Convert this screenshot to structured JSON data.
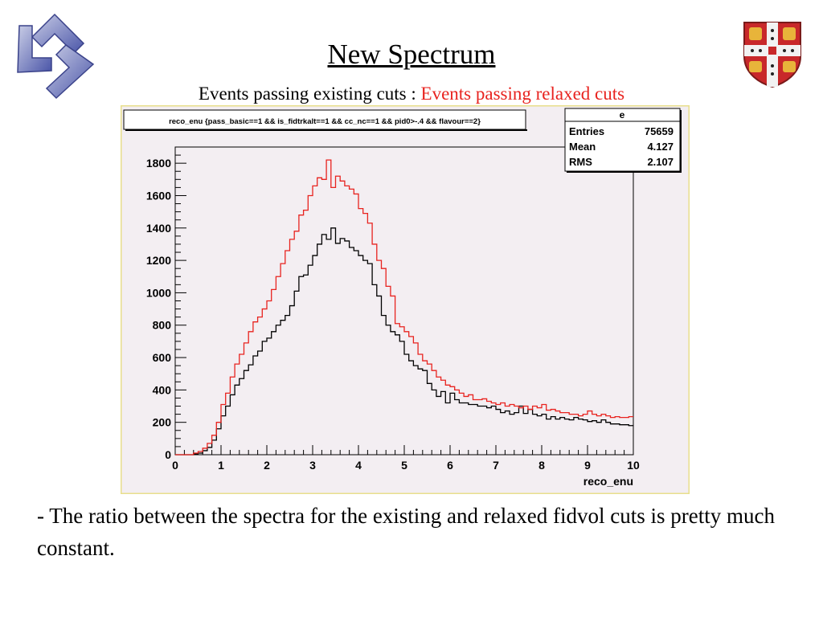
{
  "slide": {
    "title": "New Spectrum",
    "subtitle_black": "Events passing existing cuts : ",
    "subtitle_red": "Events passing relaxed cuts",
    "body_text": "- The ratio between the spectra for the existing and relaxed fidvol cuts is pretty much constant."
  },
  "logos": {
    "left": "triskelion-logo-icon",
    "right": "university-crest-icon"
  },
  "colors": {
    "existing_cuts": "#000000",
    "relaxed_cuts": "#e8231f",
    "canvas_background": "#f3eef2",
    "canvas_border": "#e8df8c"
  },
  "chart_data": {
    "type": "line",
    "style": "step histogram",
    "title": "reco_enu {pass_basic==1 && is_fidtrkalt==1 && cc_nc==1 && pid0>-.4 && flavour==2}",
    "xlabel": "reco_enu",
    "ylabel": "",
    "xlim": [
      0,
      10
    ],
    "ylim": [
      0,
      1900
    ],
    "x_ticks": [
      "0",
      "1",
      "2",
      "3",
      "4",
      "5",
      "6",
      "7",
      "8",
      "9",
      "10"
    ],
    "y_ticks": [
      "0",
      "200",
      "400",
      "600",
      "800",
      "1000",
      "1200",
      "1400",
      "1600",
      "1800"
    ],
    "bin_width": 0.1,
    "grid": false,
    "stats_box": {
      "title": "e",
      "rows": [
        {
          "label": "Entries",
          "value": "75659"
        },
        {
          "label": "Mean",
          "value": "4.127"
        },
        {
          "label": "RMS",
          "value": "2.107"
        }
      ]
    },
    "series": [
      {
        "values": [
          0,
          0,
          0,
          0,
          5,
          10,
          25,
          45,
          90,
          160,
          240,
          300,
          370,
          430,
          470,
          520,
          555,
          610,
          640,
          700,
          720,
          760,
          800,
          830,
          860,
          920,
          1010,
          1100,
          1110,
          1170,
          1230,
          1300,
          1360,
          1330,
          1400,
          1305,
          1335,
          1320,
          1280,
          1260,
          1230,
          1200,
          1180,
          1050,
          980,
          860,
          800,
          760,
          740,
          700,
          620,
          580,
          550,
          530,
          520,
          440,
          400,
          360,
          390,
          320,
          380,
          340,
          320,
          320,
          310,
          310,
          300,
          300,
          290,
          300,
          280,
          260,
          270,
          250,
          260,
          300,
          255,
          280,
          250,
          240,
          250,
          220,
          235,
          220,
          230,
          220,
          215,
          230,
          220,
          215,
          205,
          210,
          200,
          215,
          200,
          190,
          190,
          185,
          185,
          180
        ]
      },
      {
        "values": [
          0,
          0,
          0,
          0,
          10,
          20,
          40,
          70,
          120,
          200,
          310,
          380,
          480,
          560,
          620,
          690,
          760,
          820,
          850,
          900,
          950,
          1020,
          1100,
          1180,
          1260,
          1330,
          1380,
          1480,
          1510,
          1600,
          1660,
          1710,
          1700,
          1820,
          1650,
          1720,
          1690,
          1660,
          1640,
          1610,
          1520,
          1490,
          1430,
          1300,
          1200,
          1150,
          1040,
          980,
          810,
          790,
          760,
          730,
          690,
          620,
          580,
          560,
          520,
          480,
          460,
          430,
          420,
          400,
          380,
          360,
          370,
          340,
          340,
          345,
          330,
          320,
          310,
          320,
          300,
          310,
          300,
          290,
          300,
          280,
          300,
          290,
          310,
          275,
          280,
          270,
          260,
          260,
          250,
          250,
          240,
          250,
          270,
          250,
          240,
          250,
          240,
          230,
          235,
          230,
          230,
          235
        ]
      }
    ]
  }
}
